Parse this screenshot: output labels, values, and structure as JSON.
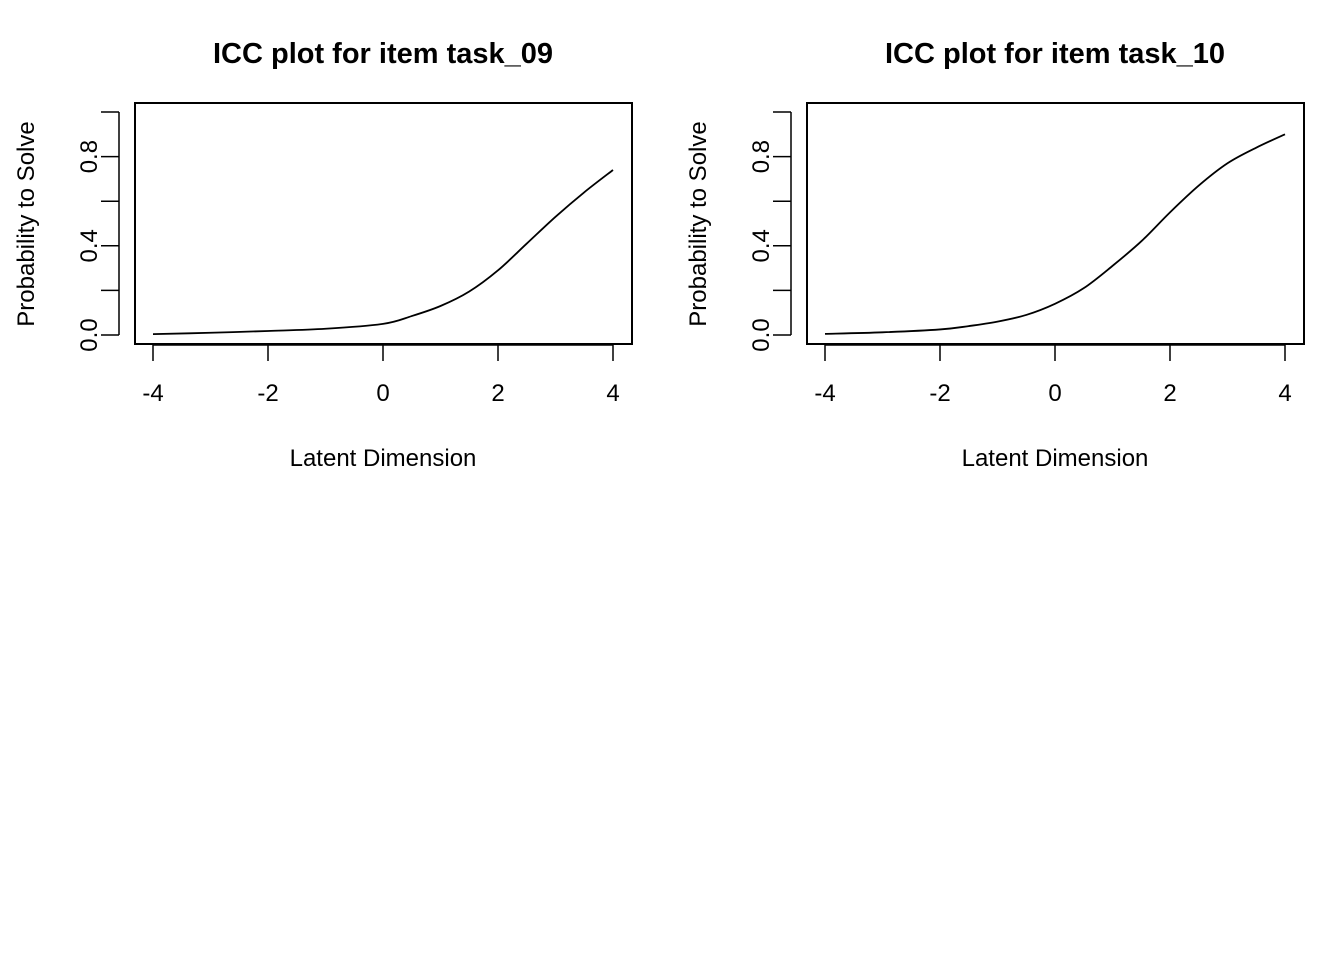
{
  "chart_data": [
    {
      "type": "line",
      "title": "ICC plot for item  task_09",
      "xlabel": "Latent Dimension",
      "ylabel": "Probability to Solve",
      "xlim": [
        -4,
        4
      ],
      "ylim": [
        0,
        1
      ],
      "x_ticks": [
        "-4",
        "-2",
        "0",
        "2",
        "4"
      ],
      "y_ticks": [
        "0.0",
        "0.4",
        "0.8"
      ],
      "grid": false,
      "series": [
        {
          "x": [
            -4,
            -3,
            -2,
            -1,
            0,
            0.5,
            1,
            1.5,
            2,
            2.5,
            3,
            3.5,
            4
          ],
          "y": [
            0.004,
            0.01,
            0.018,
            0.028,
            0.05,
            0.085,
            0.13,
            0.195,
            0.29,
            0.41,
            0.53,
            0.64,
            0.74
          ]
        }
      ]
    },
    {
      "type": "line",
      "title": "ICC plot for item  task_10",
      "xlabel": "Latent Dimension",
      "ylabel": "Probability to Solve",
      "xlim": [
        -4,
        4
      ],
      "ylim": [
        0,
        1
      ],
      "x_ticks": [
        "-4",
        "-2",
        "0",
        "2",
        "4"
      ],
      "y_ticks": [
        "0.0",
        "0.4",
        "0.8"
      ],
      "grid": false,
      "series": [
        {
          "x": [
            -4,
            -3,
            -2,
            -1.5,
            -1,
            -0.5,
            0,
            0.5,
            1,
            1.5,
            2,
            2.5,
            3,
            3.5,
            4
          ],
          "y": [
            0.005,
            0.012,
            0.025,
            0.04,
            0.06,
            0.09,
            0.14,
            0.21,
            0.31,
            0.42,
            0.55,
            0.67,
            0.77,
            0.84,
            0.9
          ]
        }
      ]
    }
  ]
}
